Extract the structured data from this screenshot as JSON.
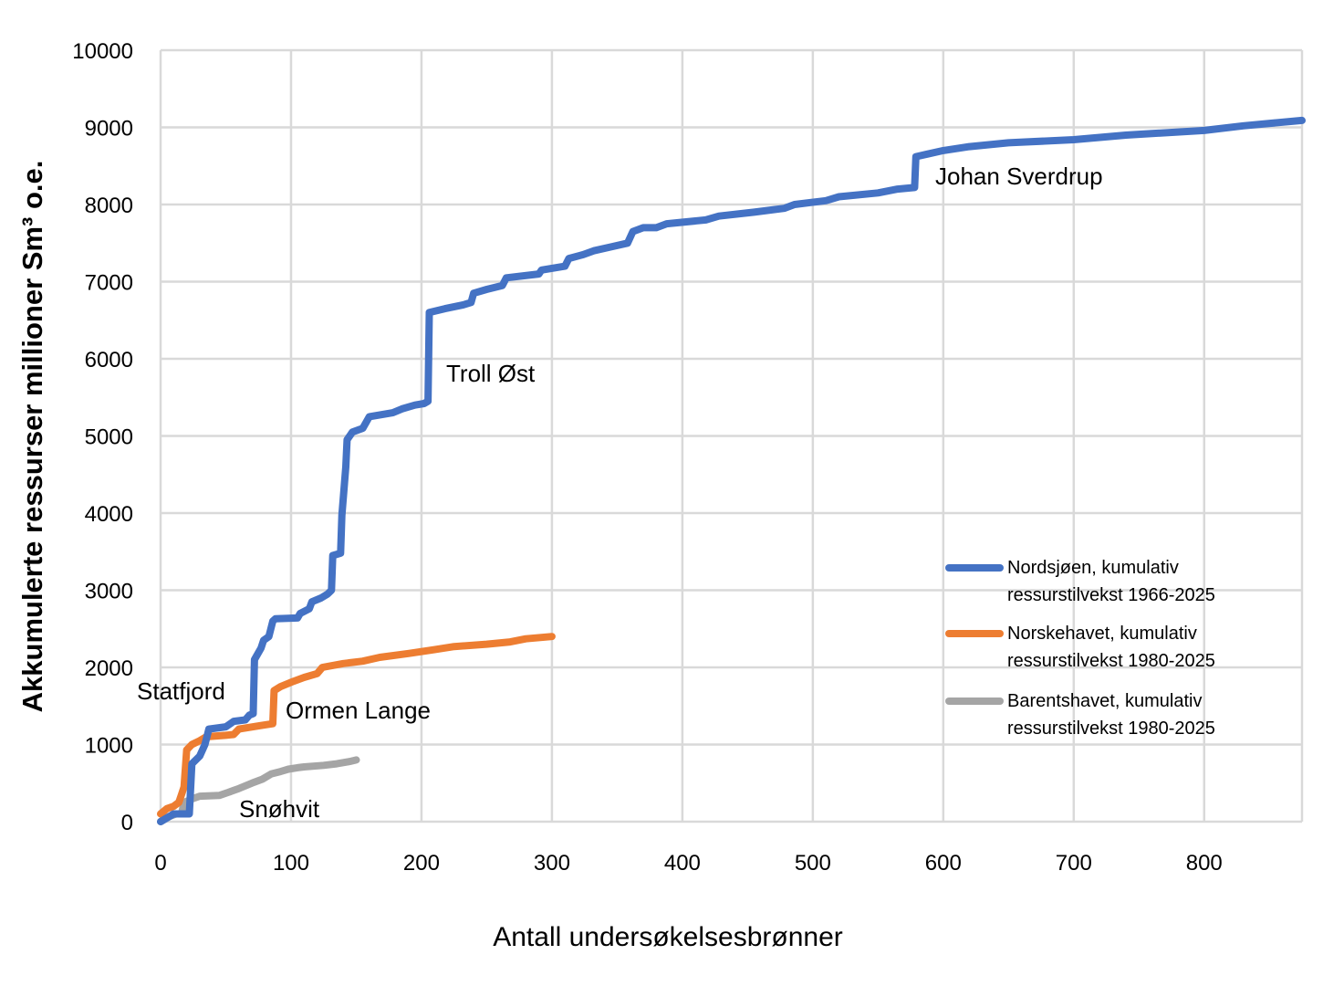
{
  "chart_data": {
    "type": "line",
    "xlabel": "Antall undersøkelsesbrønner",
    "ylabel": "Akkumulerte ressurser millioner Sm³ o.e.",
    "xlim": [
      0,
      875
    ],
    "ylim": [
      0,
      10000
    ],
    "x_ticks": [
      "0",
      "100",
      "200",
      "300",
      "400",
      "500",
      "600",
      "700",
      "800"
    ],
    "y_ticks": [
      "0",
      "1000",
      "2000",
      "3000",
      "4000",
      "5000",
      "6000",
      "7000",
      "8000",
      "9000",
      "10000"
    ],
    "grid": "vertical and horizontal",
    "legend_position": "right",
    "series": [
      {
        "name_lines": [
          "Nordsjøen, kumulativ",
          "ressurstilvekst 1966-2025"
        ],
        "color": "#4472C4",
        "points": [
          [
            0,
            0
          ],
          [
            10,
            100
          ],
          [
            22,
            100
          ],
          [
            24,
            750
          ],
          [
            30,
            850
          ],
          [
            34,
            1000
          ],
          [
            37,
            1200
          ],
          [
            50,
            1230
          ],
          [
            56,
            1300
          ],
          [
            65,
            1320
          ],
          [
            68,
            1380
          ],
          [
            71,
            1400
          ],
          [
            72,
            2100
          ],
          [
            77,
            2250
          ],
          [
            79,
            2350
          ],
          [
            83,
            2400
          ],
          [
            86,
            2600
          ],
          [
            88,
            2630
          ],
          [
            105,
            2640
          ],
          [
            107,
            2700
          ],
          [
            114,
            2760
          ],
          [
            116,
            2850
          ],
          [
            123,
            2900
          ],
          [
            128,
            2950
          ],
          [
            131,
            3000
          ],
          [
            132,
            3450
          ],
          [
            138,
            3480
          ],
          [
            139,
            3970
          ],
          [
            142,
            4600
          ],
          [
            143,
            4950
          ],
          [
            147,
            5050
          ],
          [
            155,
            5100
          ],
          [
            160,
            5250
          ],
          [
            178,
            5300
          ],
          [
            185,
            5350
          ],
          [
            195,
            5400
          ],
          [
            202,
            5420
          ],
          [
            205,
            5450
          ],
          [
            206,
            6600
          ],
          [
            218,
            6650
          ],
          [
            232,
            6700
          ],
          [
            238,
            6730
          ],
          [
            240,
            6850
          ],
          [
            250,
            6900
          ],
          [
            262,
            6950
          ],
          [
            265,
            7050
          ],
          [
            290,
            7100
          ],
          [
            292,
            7150
          ],
          [
            310,
            7200
          ],
          [
            313,
            7300
          ],
          [
            324,
            7350
          ],
          [
            332,
            7400
          ],
          [
            345,
            7450
          ],
          [
            358,
            7500
          ],
          [
            362,
            7650
          ],
          [
            370,
            7700
          ],
          [
            380,
            7700
          ],
          [
            388,
            7750
          ],
          [
            418,
            7800
          ],
          [
            428,
            7850
          ],
          [
            455,
            7900
          ],
          [
            478,
            7950
          ],
          [
            486,
            8000
          ],
          [
            510,
            8050
          ],
          [
            520,
            8100
          ],
          [
            550,
            8150
          ],
          [
            565,
            8200
          ],
          [
            578,
            8220
          ],
          [
            579,
            8620
          ],
          [
            600,
            8700
          ],
          [
            620,
            8750
          ],
          [
            650,
            8800
          ],
          [
            700,
            8840
          ],
          [
            740,
            8900
          ],
          [
            760,
            8920
          ],
          [
            800,
            8960
          ],
          [
            830,
            9020
          ],
          [
            875,
            9090
          ]
        ]
      },
      {
        "name_lines": [
          "Norskehavet, kumulativ",
          "ressurstilvekst 1980-2025"
        ],
        "color": "#ED7D31",
        "points": [
          [
            0,
            100
          ],
          [
            5,
            170
          ],
          [
            10,
            200
          ],
          [
            14,
            250
          ],
          [
            16,
            350
          ],
          [
            18,
            450
          ],
          [
            20,
            930
          ],
          [
            24,
            1000
          ],
          [
            30,
            1050
          ],
          [
            35,
            1100
          ],
          [
            50,
            1120
          ],
          [
            56,
            1130
          ],
          [
            60,
            1200
          ],
          [
            78,
            1250
          ],
          [
            86,
            1270
          ],
          [
            87,
            1700
          ],
          [
            92,
            1750
          ],
          [
            102,
            1820
          ],
          [
            110,
            1870
          ],
          [
            120,
            1920
          ],
          [
            124,
            2000
          ],
          [
            140,
            2050
          ],
          [
            155,
            2080
          ],
          [
            168,
            2130
          ],
          [
            190,
            2180
          ],
          [
            210,
            2230
          ],
          [
            225,
            2270
          ],
          [
            250,
            2300
          ],
          [
            268,
            2330
          ],
          [
            280,
            2370
          ],
          [
            300,
            2400
          ]
        ]
      },
      {
        "name_lines": [
          "Barentshavet, kumulativ",
          "ressurstilvekst 1980-2025"
        ],
        "color": "#A5A5A5",
        "points": [
          [
            0,
            0
          ],
          [
            7,
            70
          ],
          [
            12,
            100
          ],
          [
            16,
            100
          ],
          [
            18,
            250
          ],
          [
            25,
            300
          ],
          [
            30,
            330
          ],
          [
            45,
            340
          ],
          [
            52,
            380
          ],
          [
            60,
            430
          ],
          [
            70,
            500
          ],
          [
            78,
            550
          ],
          [
            85,
            620
          ],
          [
            92,
            650
          ],
          [
            98,
            680
          ],
          [
            105,
            700
          ],
          [
            110,
            710
          ],
          [
            125,
            730
          ],
          [
            135,
            750
          ],
          [
            145,
            780
          ],
          [
            150,
            800
          ]
        ]
      }
    ],
    "annotations": [
      "Statfjord",
      "Ormen Lange",
      "Snøhvit",
      "Troll Øst",
      "Johan Sverdrup"
    ]
  }
}
